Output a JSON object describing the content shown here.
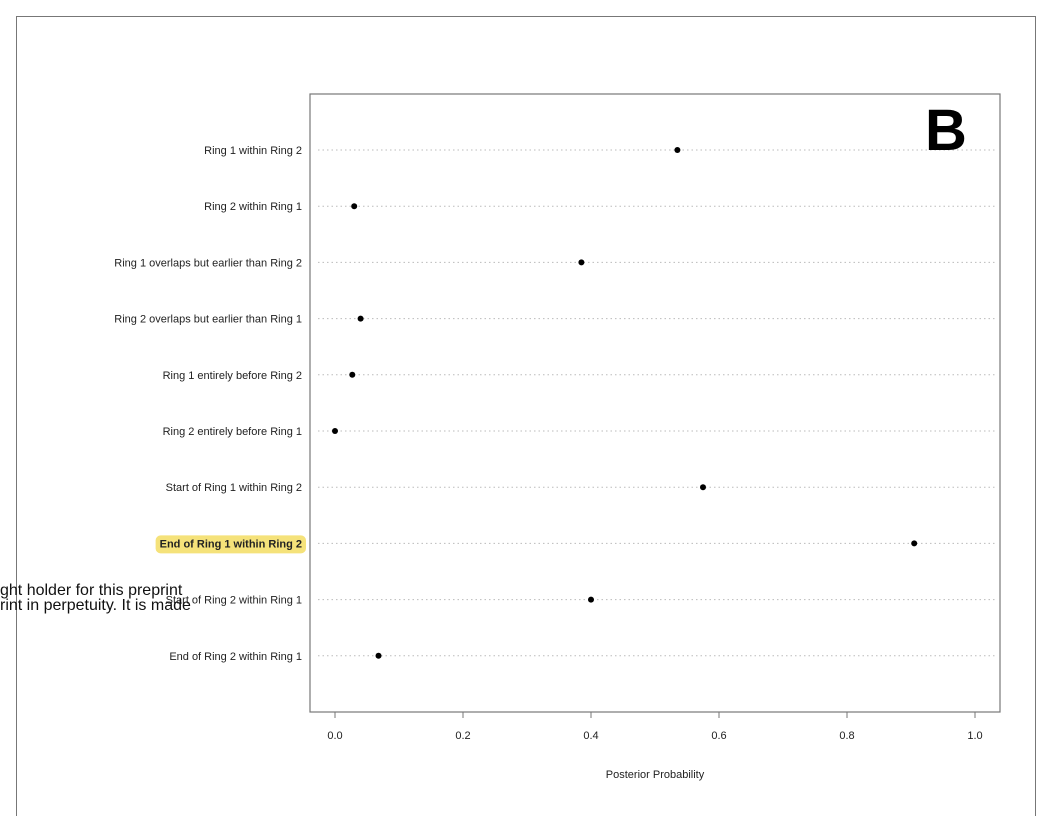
{
  "chart_data": {
    "type": "dot",
    "panel_label": "B",
    "categories": [
      "Ring 1 within Ring 2",
      "Ring 2 within Ring 1",
      "Ring 1 overlaps but earlier than Ring 2",
      "Ring 2 overlaps but earlier than Ring 1",
      "Ring 1 entirely before Ring 2",
      "Ring 2 entirely before Ring 1",
      "Start of Ring 1 within Ring 2",
      "End of Ring 1 within Ring 2",
      "Start of Ring 2 within Ring 1",
      "End of Ring 2 within Ring 1"
    ],
    "values": [
      0.535,
      0.03,
      0.385,
      0.04,
      0.027,
      0.0,
      0.575,
      0.905,
      0.4,
      0.068
    ],
    "highlighted_category_index": 7,
    "xlabel": "Posterior Probability",
    "xlim": [
      0.0,
      1.0
    ],
    "xticks": [
      "0.0",
      "0.2",
      "0.4",
      "0.6",
      "0.8",
      "1.0"
    ],
    "grid": "dotted horizontal"
  },
  "colors": {
    "highlight": "#f5e27a",
    "point": "#000000",
    "gridline": "#bbbbbb",
    "axis": "#777777"
  },
  "overlay_text": {
    "line1": "ght holder for this preprint",
    "line2": "rint in perpetuity. It is made"
  }
}
